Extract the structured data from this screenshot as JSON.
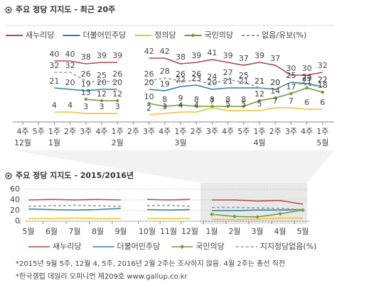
{
  "chart_data": [
    {
      "type": "line",
      "title": "주요 정당 지지도 - 최근 20주",
      "categories": [
        "4주",
        "5주",
        "1주",
        "2주",
        "3주",
        "4주",
        "1주",
        "2주",
        "3주",
        "4주",
        "1주",
        "2주",
        "3주",
        "4주",
        "5주",
        "1주",
        "2주",
        "3주",
        "4주",
        "1주"
      ],
      "months": [
        "12월",
        null,
        "1월",
        null,
        null,
        null,
        "2월",
        null,
        null,
        null,
        "3월",
        null,
        null,
        null,
        null,
        "4월",
        null,
        null,
        null,
        "5월"
      ],
      "series": [
        {
          "name": "새누리당",
          "color": "#b0484d",
          "values": [
            null,
            null,
            40,
            40,
            38,
            39,
            39,
            null,
            42,
            42,
            38,
            39,
            41,
            39,
            37,
            39,
            37,
            30,
            30,
            32
          ]
        },
        {
          "name": "더불어민주당",
          "color": "#2f7f9e",
          "values": [
            null,
            null,
            21,
            20,
            19,
            20,
            20,
            null,
            20,
            19,
            22,
            23,
            20,
            21,
            21,
            21,
            20,
            25,
            24,
            22
          ]
        },
        {
          "name": "정의당",
          "color": "#f2c12e",
          "values": [
            null,
            null,
            4,
            4,
            3,
            3,
            3,
            null,
            2,
            3,
            4,
            4,
            7,
            5,
            5,
            5,
            7,
            7,
            6,
            6
          ]
        },
        {
          "name": "국민의당",
          "color": "#6e9a3a",
          "marker": "diamond",
          "values": [
            null,
            null,
            null,
            null,
            13,
            12,
            12,
            null,
            10,
            8,
            9,
            8,
            8,
            8,
            8,
            12,
            14,
            17,
            21,
            18
          ]
        },
        {
          "name": "없음/유보(%)",
          "color": "#999999",
          "dash": true,
          "values": [
            null,
            null,
            32,
            32,
            26,
            25,
            26,
            null,
            26,
            28,
            26,
            26,
            24,
            27,
            25,
            21,
            20,
            25,
            23,
            22
          ]
        }
      ]
    },
    {
      "type": "line",
      "title": "주요 정당 지지도 - 2015/2016년",
      "categories": [
        "5월",
        "6월",
        "7월",
        "8월",
        "9월",
        "10월",
        "11월",
        "12월",
        "1월",
        "2월",
        "3월",
        "4월",
        "5월"
      ],
      "ylim": [
        0,
        60
      ],
      "yticks": [
        0,
        20,
        40,
        60
      ],
      "grid": true,
      "series": [
        {
          "name": "새누리당",
          "color": "#b0484d",
          "values": [
            40,
            41,
            40,
            41,
            40,
            41,
            40,
            41,
            40,
            40,
            38,
            39,
            32
          ]
        },
        {
          "name": "더불어민주당",
          "color": "#2f7f9e",
          "values": [
            23,
            22,
            21,
            22,
            24,
            22,
            21,
            22,
            20,
            20,
            21,
            21,
            22
          ]
        },
        {
          "color": "#f2c12e",
          "values": [
            5,
            5,
            6,
            5,
            5,
            5,
            5,
            5,
            4,
            3,
            4,
            6,
            6
          ]
        },
        {
          "name": "국민의당",
          "color": "#6e9a3a",
          "marker": "diamond",
          "values": [
            null,
            null,
            null,
            null,
            null,
            null,
            null,
            null,
            13,
            9,
            8,
            14,
            21
          ]
        },
        {
          "name": "지지정당없음(%)",
          "color": "#999999",
          "dash": true,
          "values": [
            28,
            29,
            30,
            29,
            28,
            29,
            30,
            28,
            26,
            26,
            25,
            24,
            22
          ]
        }
      ]
    }
  ],
  "notes": [
    "*2015년 9월 5주, 12월 4, 5주, 2016년 2월 2주는 조사하지 않음. 4월 2주는 총선 직전",
    "*한국갤럽 데일리 오피니언 제209호 www.gallup.co.kr"
  ]
}
